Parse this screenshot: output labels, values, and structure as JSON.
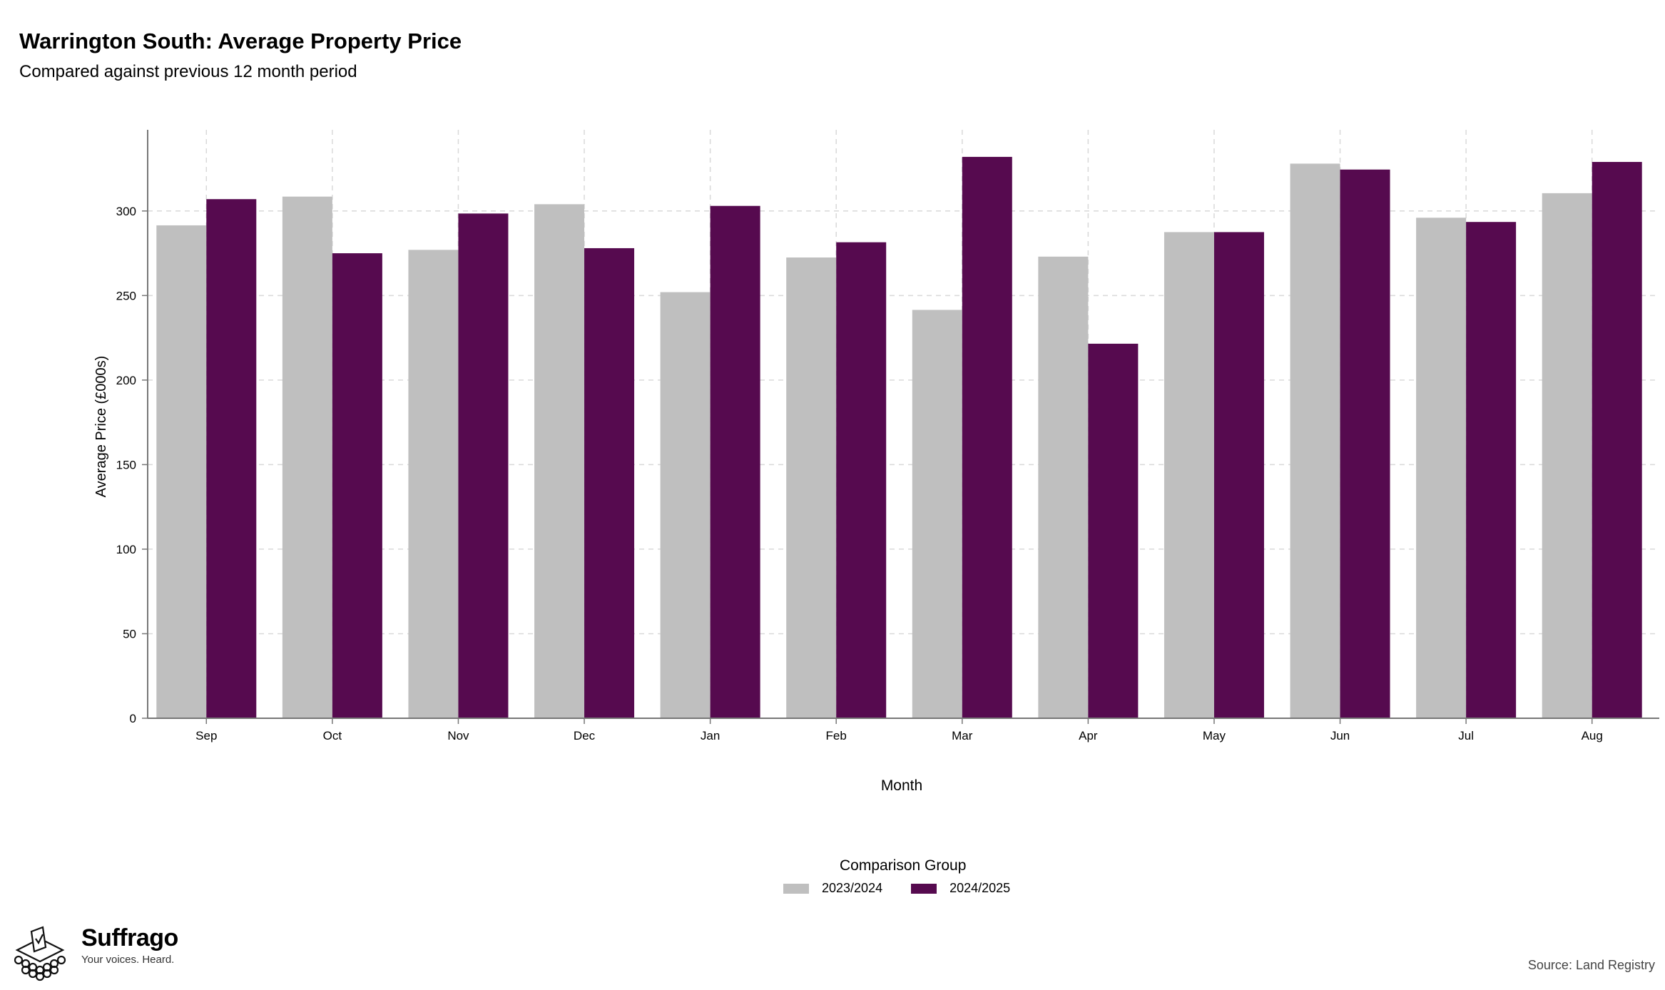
{
  "header": {
    "title": "Warrington South: Average Property Price",
    "subtitle": "Compared against previous 12 month period"
  },
  "legend": {
    "title": "Comparison Group",
    "items": [
      {
        "label": "2023/2024",
        "color": "#bfbfbf"
      },
      {
        "label": "2024/2025",
        "color": "#560a4f"
      }
    ]
  },
  "footer": {
    "brand": "Suffrago",
    "tagline": "Your voices. Heard.",
    "source": "Source: Land Registry"
  },
  "chart_data": {
    "type": "bar",
    "xlabel": "Month",
    "ylabel": "Average Price (£000s)",
    "categories": [
      "Sep",
      "Oct",
      "Nov",
      "Dec",
      "Jan",
      "Feb",
      "Mar",
      "Apr",
      "May",
      "Jun",
      "Jul",
      "Aug"
    ],
    "series": [
      {
        "name": "2023/2024",
        "color": "#bfbfbf",
        "values": [
          291.5,
          308.5,
          277,
          304,
          252,
          272.5,
          241.5,
          273,
          287.5,
          328,
          296,
          310.5
        ]
      },
      {
        "name": "2024/2025",
        "color": "#560a4f",
        "values": [
          307,
          275,
          298.5,
          278,
          303,
          281.5,
          332,
          221.5,
          287.5,
          324.5,
          293.5,
          329
        ]
      }
    ],
    "yticks": [
      0,
      50,
      100,
      150,
      200,
      250,
      300
    ],
    "ylim": [
      0,
      348
    ],
    "grid": true,
    "legend_position": "bottom"
  }
}
